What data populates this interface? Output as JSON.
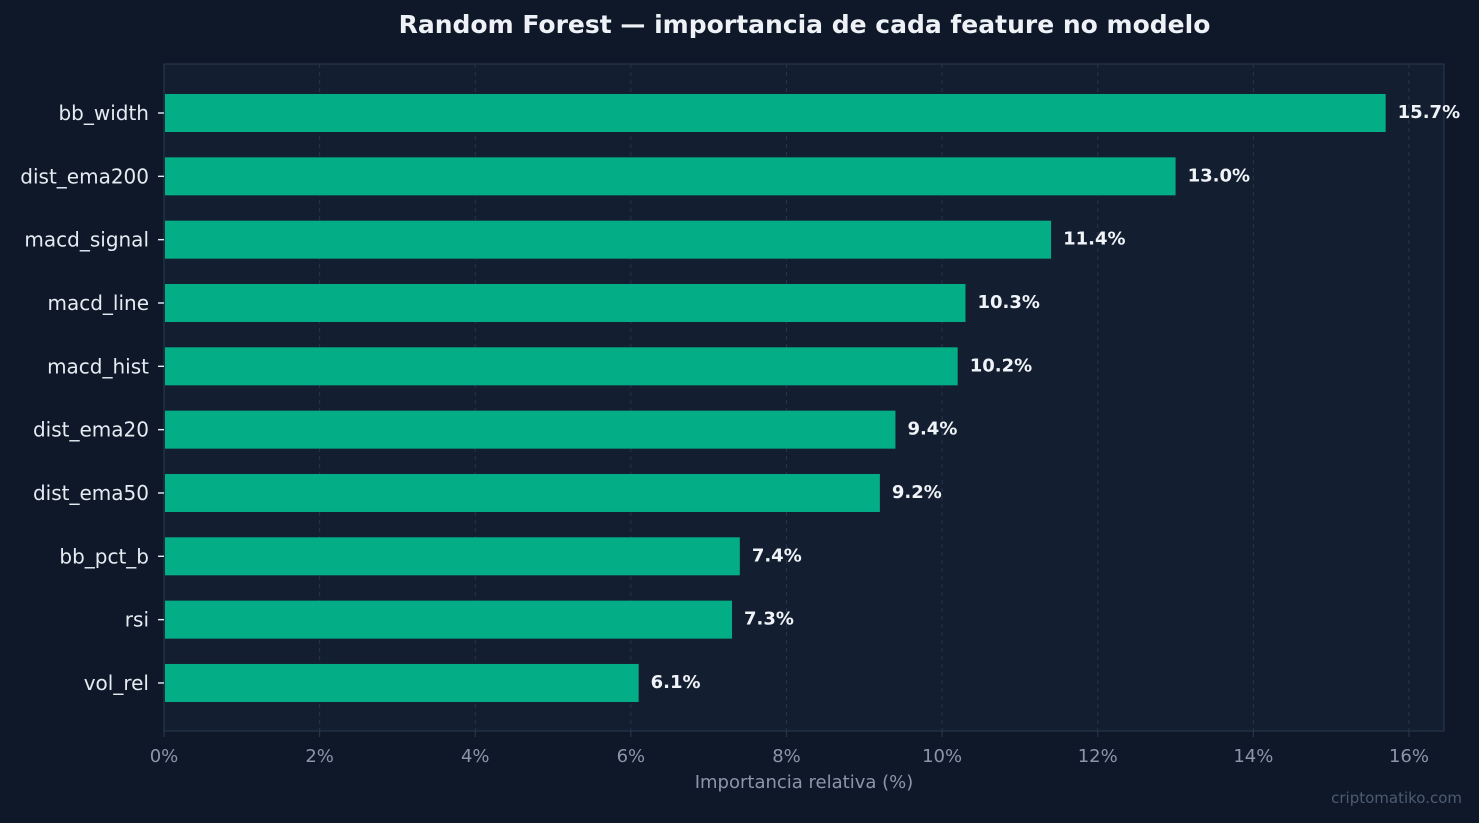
{
  "chart_data": {
    "type": "bar",
    "orientation": "horizontal",
    "title": "Random Forest — importancia de cada feature no modelo",
    "xlabel": "Importancia relativa (%)",
    "ylabel": "",
    "categories": [
      "bb_width",
      "dist_ema200",
      "macd_signal",
      "macd_line",
      "macd_hist",
      "dist_ema20",
      "dist_ema50",
      "bb_pct_b",
      "rsi",
      "vol_rel"
    ],
    "values": [
      15.7,
      13.0,
      11.4,
      10.3,
      10.2,
      9.4,
      9.2,
      7.4,
      7.3,
      6.1
    ],
    "value_labels": [
      "15.7%",
      "13.0%",
      "11.4%",
      "10.3%",
      "10.2%",
      "9.4%",
      "9.2%",
      "7.4%",
      "7.3%",
      "6.1%"
    ],
    "xlim": [
      0,
      16.5
    ],
    "xticks": [
      0,
      2,
      4,
      6,
      8,
      10,
      12,
      14,
      16
    ],
    "xtick_labels": [
      "0%",
      "2%",
      "4%",
      "6%",
      "8%",
      "10%",
      "12%",
      "14%",
      "16%"
    ],
    "grid": "vertical-dashed",
    "legend": "none",
    "colors": {
      "background": "#0e1829",
      "plot_background": "#131f31",
      "bar": "#03ae87",
      "frame": "#27354a",
      "grid": "#273448",
      "tick_text": "#8b97a8",
      "category_text": "#e6ebf2",
      "value_text": "#f0f3f7",
      "title_text": "#eef1f6"
    }
  },
  "watermark": "criptomatiko.com"
}
